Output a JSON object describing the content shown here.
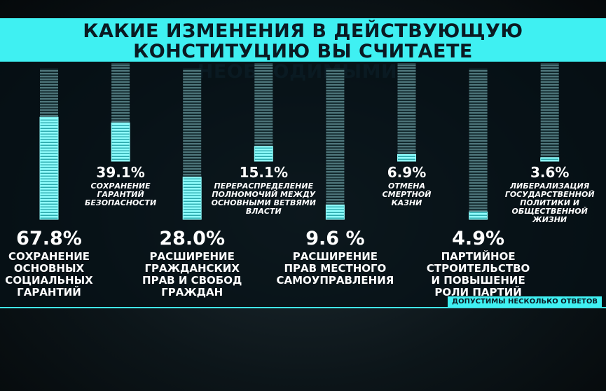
{
  "chart_data": {
    "type": "bar",
    "title": "КАКИЕ ИЗМЕНЕНИЯ В ДЕЙСТВУЮЩУЮ КОНСТИТУЦИЮ ВЫ СЧИТАЕТЕ НЕОБХОДИМЫМИ?",
    "categories": [
      "СОХРАНЕНИЕ\nОСНОВНЫХ\nСОЦИАЛЬНЫХ\nГАРАНТИЙ",
      "СОХРАНЕНИЕ\nГАРАНТИЙ\nБЕЗОПАСНОСТИ",
      "РАСШИРЕНИЕ\nГРАЖДАНСКИХ\nПРАВ И СВОБОД\nГРАЖДАН",
      "ПЕРЕРАСПРЕДЕЛЕНИЕ\nПОЛНОМОЧИЙ МЕЖДУ\nОСНОВНЫМИ ВЕТВЯМИ\nВЛАСТИ",
      "РАСШИРЕНИЕ\nПРАВ МЕСТНОГО\nСАМОУПРАВЛЕНИЯ",
      "ОТМЕНА\nСМЕРТНОЙ\nКАЗНИ",
      "ПАРТИЙНОЕ\nСТРОИТЕЛЬСТВО\nИ ПОВЫШЕНИЕ\nРОЛИ ПАРТИЙ",
      "ЛИБЕРАЛИЗАЦИЯ\nГОСУДАРСТВЕННОЙ\nПОЛИТИКИ И\nОБЩЕСТВЕННОЙ\nЖИЗНИ"
    ],
    "values": [
      67.8,
      39.1,
      28.0,
      15.1,
      9.6,
      6.9,
      4.9,
      3.6
    ],
    "value_labels": [
      "67.8%",
      "39.1%",
      "28.0%",
      "15.1%",
      "9.6 %",
      "6.9%",
      "4.9%",
      "3.6%"
    ],
    "ylim": [
      0,
      100
    ],
    "color": "#8ffcfc",
    "note": "ДОПУСТИМЫ НЕСКОЛЬКО ОТВЕТОВ"
  }
}
